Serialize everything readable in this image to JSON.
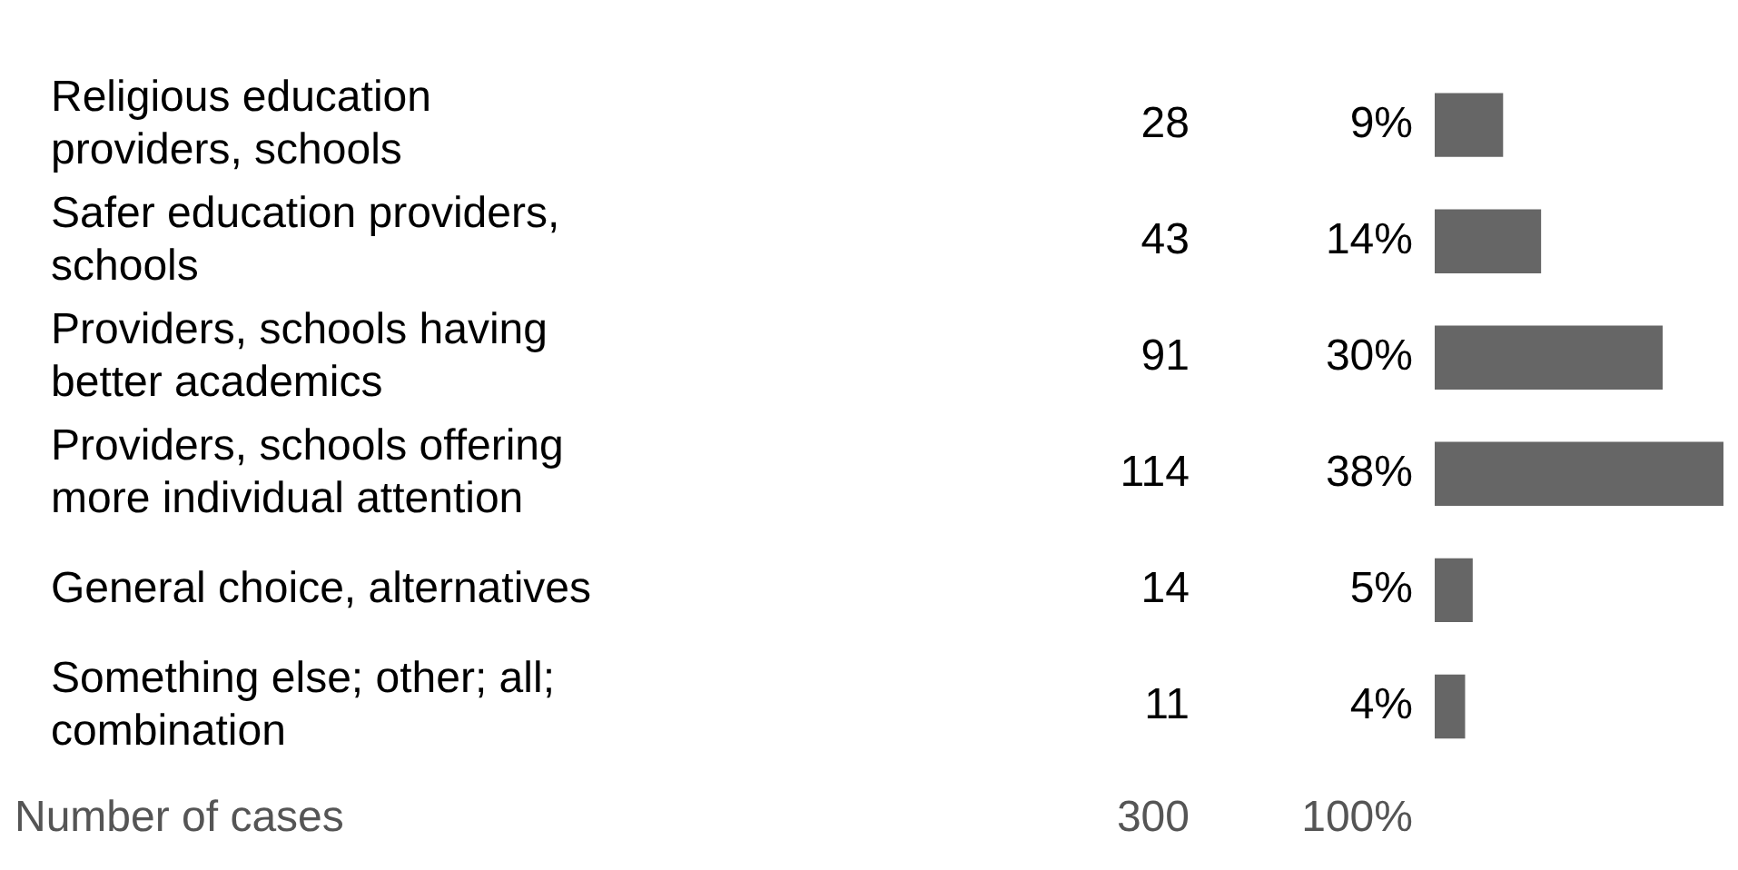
{
  "chart_data": {
    "type": "bar",
    "orientation": "horizontal",
    "color": "#666666",
    "categories": [
      "Religious education providers, schools",
      "Safer education providers, schools",
      "Providers, schools having better academics",
      "Providers, schools offering more individual attention",
      "General choice, alternatives",
      "Something else; other; all; combination"
    ],
    "values": [
      9,
      14,
      30,
      38,
      5,
      4
    ],
    "value_labels": [
      "9%",
      "14%",
      "30%",
      "38%",
      "5%",
      "4%"
    ],
    "annotations": [
      "28",
      "43",
      "91",
      "114",
      "14",
      "11",
      "Number of cases",
      "300",
      "100%"
    ],
    "tick_labels": "y",
    "grid": false,
    "legend": false
  }
}
